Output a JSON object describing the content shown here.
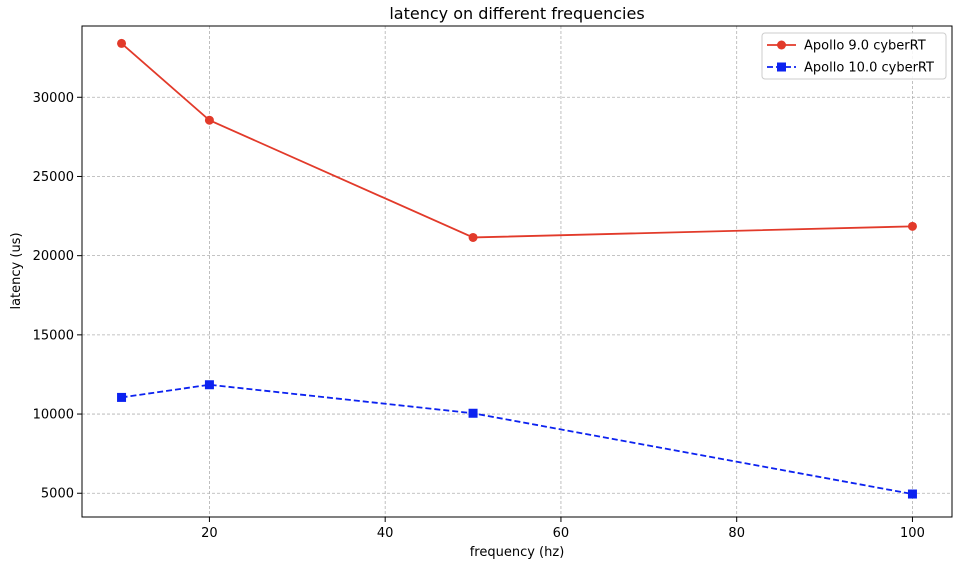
{
  "chart_data": {
    "type": "line",
    "title": "latency on different frequencies",
    "xlabel": "frequency (hz)",
    "ylabel": "latency (us)",
    "x": [
      10,
      20,
      50,
      100
    ],
    "xlim": [
      5.5,
      104.5
    ],
    "ylim": [
      3500,
      34500
    ],
    "xticks": [
      20,
      40,
      60,
      80,
      100
    ],
    "yticks": [
      5000,
      10000,
      15000,
      20000,
      25000,
      30000
    ],
    "grid": true,
    "legend_position": "top-right",
    "series": [
      {
        "name": "Apollo 9.0 cyberRT",
        "values": [
          33400,
          28550,
          21150,
          21850
        ],
        "color": "#e23a2a",
        "marker": "circle",
        "linestyle": "solid"
      },
      {
        "name": "Apollo 10.0 cyberRT",
        "values": [
          11050,
          11850,
          10050,
          4950
        ],
        "color": "#0c22f0",
        "marker": "square",
        "linestyle": "dashed"
      }
    ]
  }
}
